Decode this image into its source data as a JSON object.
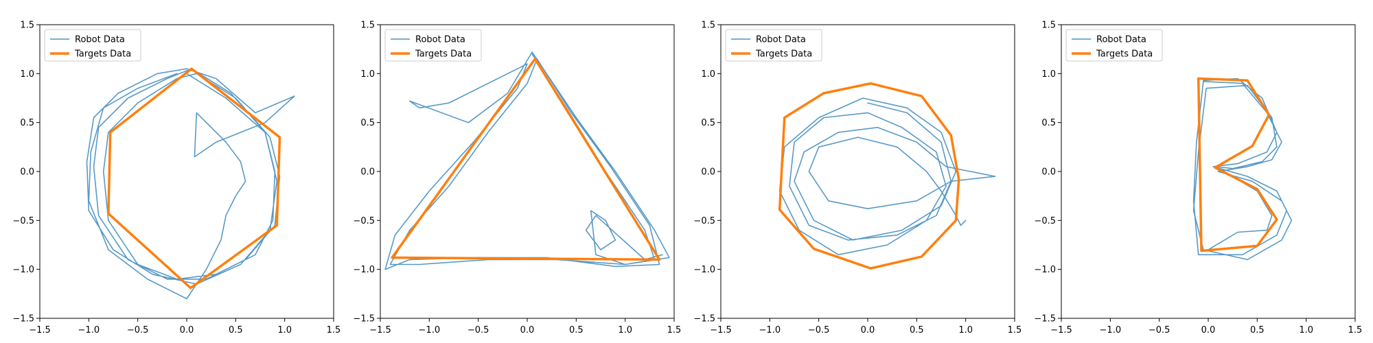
{
  "colors": {
    "robot": "#1f77b4",
    "targets": "#ff7f0e",
    "axes": "#000000",
    "legend_border": "#cccccc"
  },
  "chart_data": [
    {
      "type": "line",
      "xlim": [
        -1.5,
        1.5
      ],
      "ylim": [
        -1.5,
        1.5
      ],
      "xticks": [
        -1.5,
        -1.0,
        -0.5,
        0.0,
        0.5,
        1.0,
        1.5
      ],
      "yticks": [
        -1.5,
        -1.0,
        -0.5,
        0.0,
        0.5,
        1.0,
        1.5
      ],
      "xtick_labels": [
        "−1.5",
        "−1.0",
        "−0.5",
        "0.0",
        "0.5",
        "1.0",
        "1.5"
      ],
      "ytick_labels": [
        "−1.5",
        "−1.0",
        "−0.5",
        "0.0",
        "0.5",
        "1.0",
        "1.5"
      ],
      "grid": false,
      "legend": "upper-left",
      "series": [
        {
          "name": "Robot Data",
          "color": "#1f77b4",
          "x": [
            0.0,
            0.4,
            0.8,
            0.9,
            0.88,
            0.7,
            0.3,
            -0.1,
            -0.5,
            -0.8,
            -0.85,
            -0.8,
            -0.5,
            -0.1,
            0.1,
            0.5,
            0.85,
            0.95,
            0.9,
            0.6,
            0.2,
            -0.2,
            -0.6,
            -0.9,
            -0.95,
            -0.9,
            -0.6,
            -0.2,
            0.05,
            0.45,
            0.8,
            0.92,
            0.85,
            0.55,
            0.1,
            -0.35,
            -0.75,
            -1.0,
            -1.02,
            -0.95,
            -0.7,
            -0.3,
            0.0,
            0.3,
            0.7,
            1.1,
            0.8,
            0.3,
            0.08,
            0.1,
            0.4,
            0.55,
            0.6,
            0.5,
            0.4,
            0.35,
            0.2,
            0.0,
            -0.4,
            -0.8,
            -1.0,
            -0.98,
            -0.85,
            -0.5,
            -0.1
          ],
          "y": [
            1.0,
            0.75,
            0.4,
            0.0,
            -0.5,
            -0.85,
            -1.05,
            -1.1,
            -0.95,
            -0.5,
            0.0,
            0.4,
            0.7,
            0.95,
            1.0,
            0.75,
            0.35,
            -0.05,
            -0.55,
            -0.9,
            -1.1,
            -1.1,
            -0.9,
            -0.45,
            0.05,
            0.45,
            0.75,
            0.95,
            1.05,
            0.8,
            0.4,
            -0.1,
            -0.6,
            -0.95,
            -1.15,
            -1.05,
            -0.8,
            -0.4,
            0.1,
            0.55,
            0.8,
            1.0,
            1.05,
            0.95,
            0.6,
            0.77,
            0.5,
            0.3,
            0.15,
            0.6,
            0.3,
            0.1,
            -0.1,
            -0.25,
            -0.45,
            -0.7,
            -1.0,
            -1.3,
            -1.1,
            -0.8,
            -0.3,
            0.2,
            0.65,
            0.85,
            1.0
          ]
        },
        {
          "name": "Targets Data",
          "color": "#ff7f0e",
          "x": [
            0.05,
            0.95,
            0.92,
            0.04,
            -0.8,
            -0.78,
            0.05
          ],
          "y": [
            1.05,
            0.35,
            -0.55,
            -1.19,
            -0.43,
            0.4,
            1.05
          ]
        }
      ]
    },
    {
      "type": "line",
      "xlim": [
        -1.5,
        1.5
      ],
      "ylim": [
        -1.5,
        1.5
      ],
      "xticks": [
        -1.5,
        -1.0,
        -0.5,
        0.0,
        0.5,
        1.0,
        1.5
      ],
      "yticks": [
        -1.5,
        -1.0,
        -0.5,
        0.0,
        0.5,
        1.0,
        1.5
      ],
      "xtick_labels": [
        "−1.5",
        "−1.0",
        "−0.5",
        "0.0",
        "0.5",
        "1.0",
        "1.5"
      ],
      "ytick_labels": [
        "−1.5",
        "−1.0",
        "−0.5",
        "0.0",
        "0.5",
        "1.0",
        "1.5"
      ],
      "grid": false,
      "legend": "upper-left",
      "series": [
        {
          "name": "Robot Data",
          "color": "#1f77b4",
          "x": [
            0.05,
            0.4,
            0.8,
            1.2,
            1.3,
            1.0,
            0.3,
            -0.4,
            -1.1,
            -1.4,
            -1.2,
            -0.8,
            -0.4,
            0.0,
            0.1,
            0.45,
            0.85,
            1.25,
            1.35,
            0.9,
            0.2,
            -0.5,
            -1.2,
            -1.45,
            -1.35,
            -1.0,
            -0.55,
            -0.1,
            0.0,
            -0.8,
            -1.1,
            -1.2,
            -0.6,
            -0.2,
            0.05,
            0.5,
            0.9,
            1.3,
            1.45,
            1.0,
            0.7,
            0.65,
            0.8,
            0.9,
            0.75,
            0.6,
            0.7,
            1.2,
            1.38
          ],
          "y": [
            1.2,
            0.65,
            0.0,
            -0.6,
            -0.9,
            -0.95,
            -0.9,
            -0.9,
            -0.95,
            -0.95,
            -0.6,
            -0.15,
            0.4,
            0.9,
            1.15,
            0.6,
            0.05,
            -0.55,
            -0.95,
            -0.97,
            -0.88,
            -0.88,
            -0.9,
            -1.0,
            -0.65,
            -0.2,
            0.3,
            0.85,
            1.1,
            0.7,
            0.65,
            0.72,
            0.5,
            0.8,
            1.22,
            0.55,
            0.0,
            -0.6,
            -0.88,
            -0.95,
            -0.85,
            -0.4,
            -0.5,
            -0.7,
            -0.8,
            -0.6,
            -0.45,
            -0.9,
            -0.85
          ]
        },
        {
          "name": "Targets Data",
          "color": "#ff7f0e",
          "x": [
            0.08,
            1.35,
            -1.38,
            0.08
          ],
          "y": [
            1.15,
            -0.9,
            -0.88,
            1.15
          ]
        }
      ]
    },
    {
      "type": "line",
      "xlim": [
        -1.5,
        1.5
      ],
      "ylim": [
        -1.5,
        1.5
      ],
      "xticks": [
        -1.5,
        -1.0,
        -0.5,
        0.0,
        0.5,
        1.0,
        1.5
      ],
      "yticks": [
        -1.5,
        -1.0,
        -0.5,
        0.0,
        0.5,
        1.0,
        1.5
      ],
      "xtick_labels": [
        "−1.5",
        "−1.0",
        "−0.5",
        "0.0",
        "0.5",
        "1.0",
        "1.5"
      ],
      "ytick_labels": [
        "−1.5",
        "−1.0",
        "−0.5",
        "0.0",
        "0.5",
        "1.0",
        "1.5"
      ],
      "grid": false,
      "legend": "upper-left",
      "series": [
        {
          "name": "Robot Data",
          "color": "#1f77b4",
          "x": [
            0.0,
            0.4,
            0.75,
            0.85,
            0.7,
            0.3,
            -0.2,
            -0.6,
            -0.8,
            -0.75,
            -0.45,
            0.0,
            0.35,
            0.7,
            0.8,
            0.6,
            0.2,
            -0.3,
            -0.7,
            -0.9,
            -0.85,
            -0.5,
            -0.05,
            0.4,
            0.75,
            0.9,
            0.75,
            0.35,
            -0.15,
            -0.55,
            -0.75,
            -0.65,
            -0.3,
            0.1,
            0.5,
            0.8,
            1.3,
            0.85,
            0.5,
            0.0,
            -0.4,
            -0.6,
            -0.5,
            -0.1,
            0.3,
            0.6,
            0.75,
            0.9,
            0.95,
            1.0
          ],
          "y": [
            0.7,
            0.6,
            0.3,
            -0.1,
            -0.45,
            -0.65,
            -0.7,
            -0.55,
            -0.15,
            0.3,
            0.55,
            0.6,
            0.45,
            0.2,
            -0.15,
            -0.5,
            -0.75,
            -0.85,
            -0.6,
            -0.2,
            0.25,
            0.55,
            0.75,
            0.65,
            0.4,
            0.0,
            -0.35,
            -0.6,
            -0.7,
            -0.5,
            -0.1,
            0.2,
            0.4,
            0.45,
            0.3,
            0.05,
            -0.05,
            -0.1,
            -0.3,
            -0.38,
            -0.3,
            0.0,
            0.25,
            0.35,
            0.25,
            0.0,
            -0.2,
            -0.45,
            -0.55,
            -0.5
          ]
        },
        {
          "name": "Targets Data",
          "color": "#ff7f0e",
          "x": [
            0.03,
            0.55,
            0.85,
            0.93,
            0.9,
            0.55,
            0.03,
            -0.55,
            -0.9,
            -0.85,
            -0.45,
            0.03
          ],
          "y": [
            0.9,
            0.77,
            0.37,
            -0.08,
            -0.5,
            -0.87,
            -0.99,
            -0.79,
            -0.39,
            0.55,
            0.8,
            0.9
          ]
        }
      ]
    },
    {
      "type": "line",
      "xlim": [
        -1.5,
        1.5
      ],
      "ylim": [
        -1.5,
        1.5
      ],
      "xticks": [
        -1.5,
        -1.0,
        -0.5,
        0.0,
        0.5,
        1.0,
        1.5
      ],
      "yticks": [
        -1.5,
        -1.0,
        -0.5,
        0.0,
        0.5,
        1.0,
        1.5
      ],
      "xtick_labels": [
        "−1.5",
        "−1.0",
        "−0.5",
        "0.0",
        "0.5",
        "1.0",
        "1.5"
      ],
      "ytick_labels": [
        "−1.5",
        "−1.0",
        "−0.5",
        "0.0",
        "0.5",
        "1.0",
        "1.5"
      ],
      "grid": false,
      "legend": "upper-left",
      "series": [
        {
          "name": "Robot Data",
          "color": "#1f77b4",
          "x": [
            -0.05,
            0.3,
            0.55,
            0.7,
            0.6,
            0.3,
            0.05,
            0.4,
            0.7,
            0.8,
            0.7,
            0.35,
            -0.1,
            -0.15,
            -0.12,
            -0.05,
            0.35,
            0.6,
            0.75,
            0.65,
            0.4,
            0.1,
            0.45,
            0.75,
            0.85,
            0.75,
            0.4,
            -0.05,
            -0.15,
            -0.1,
            -0.02,
            0.4,
            0.65,
            0.7,
            0.55,
            0.25,
            0.08,
            0.5,
            0.65,
            0.6,
            0.3,
            0.0
          ],
          "y": [
            0.93,
            0.95,
            0.75,
            0.4,
            0.2,
            0.08,
            0.05,
            -0.05,
            -0.2,
            -0.4,
            -0.65,
            -0.85,
            -0.85,
            -0.3,
            0.3,
            0.92,
            0.9,
            0.6,
            0.3,
            0.12,
            0.05,
            0.0,
            -0.1,
            -0.3,
            -0.5,
            -0.7,
            -0.9,
            -0.8,
            -0.4,
            0.2,
            0.85,
            0.88,
            0.55,
            0.25,
            0.1,
            0.03,
            0.05,
            -0.2,
            -0.45,
            -0.6,
            -0.62,
            -0.8
          ]
        },
        {
          "name": "Targets Data",
          "color": "#ff7f0e",
          "x": [
            -0.1,
            0.4,
            0.62,
            0.45,
            0.07,
            0.5,
            0.7,
            0.5,
            -0.07,
            -0.1
          ],
          "y": [
            0.95,
            0.93,
            0.58,
            0.26,
            0.04,
            -0.18,
            -0.49,
            -0.76,
            -0.81,
            0.95
          ]
        }
      ]
    }
  ]
}
